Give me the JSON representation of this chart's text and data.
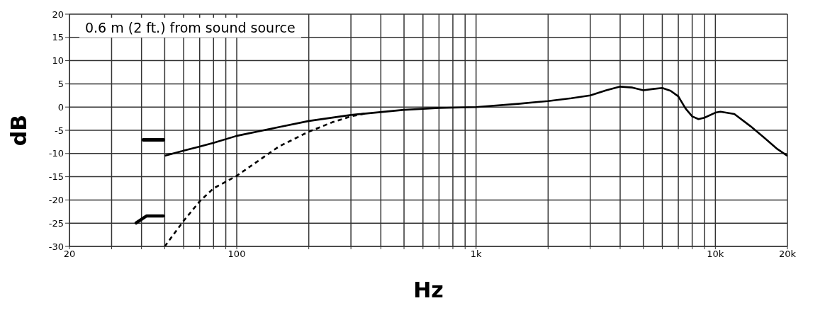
{
  "chart_data": {
    "type": "line",
    "xlabel": "Hz",
    "ylabel": "dB",
    "log": "x",
    "xlim": [
      20,
      20000
    ],
    "ylim": [
      -30,
      20
    ],
    "xticks": [
      {
        "value": 20,
        "label": "20"
      },
      {
        "value": 30,
        "label": null
      },
      {
        "value": 40,
        "label": null
      },
      {
        "value": 50,
        "label": null
      },
      {
        "value": 60,
        "label": null
      },
      {
        "value": 70,
        "label": null
      },
      {
        "value": 80,
        "label": null
      },
      {
        "value": 90,
        "label": null
      },
      {
        "value": 100,
        "label": "100"
      },
      {
        "value": 200,
        "label": null
      },
      {
        "value": 300,
        "label": null
      },
      {
        "value": 400,
        "label": null
      },
      {
        "value": 500,
        "label": null
      },
      {
        "value": 600,
        "label": null
      },
      {
        "value": 700,
        "label": null
      },
      {
        "value": 800,
        "label": null
      },
      {
        "value": 900,
        "label": null
      },
      {
        "value": 1000,
        "label": "1k"
      },
      {
        "value": 2000,
        "label": null
      },
      {
        "value": 3000,
        "label": null
      },
      {
        "value": 4000,
        "label": null
      },
      {
        "value": 5000,
        "label": null
      },
      {
        "value": 6000,
        "label": null
      },
      {
        "value": 7000,
        "label": null
      },
      {
        "value": 8000,
        "label": null
      },
      {
        "value": 9000,
        "label": null
      },
      {
        "value": 10000,
        "label": "10k"
      },
      {
        "value": 20000,
        "label": "20k"
      }
    ],
    "yticks": [
      -30,
      -25,
      -20,
      -15,
      -10,
      -5,
      0,
      5,
      10,
      15,
      20
    ],
    "grid": true,
    "legend": false,
    "marker": "none",
    "annotations": [
      "0.6 m (2 ft.) from sound source"
    ],
    "series": [
      {
        "color": "#000000",
        "line_style": "solid",
        "x": [
          50,
          60,
          70,
          80,
          100,
          150,
          200,
          300,
          500,
          700,
          1000,
          1500,
          2000,
          2500,
          3000,
          3500,
          4000,
          4500,
          5000,
          5500,
          6000,
          6500,
          7000,
          7500,
          8000,
          8500,
          9000,
          10000,
          10500,
          12000,
          14000,
          16000,
          18000,
          20000
        ],
        "values": [
          -10.5,
          -9.4,
          -8.5,
          -7.7,
          -6.2,
          -4.3,
          -3.0,
          -1.7,
          -0.6,
          -0.2,
          0,
          0.7,
          1.3,
          1.9,
          2.5,
          3.6,
          4.4,
          4.2,
          3.6,
          3.9,
          4.1,
          3.5,
          2.3,
          -0.3,
          -2.0,
          -2.6,
          -2.3,
          -1.2,
          -1.0,
          -1.5,
          -4.1,
          -6.6,
          -8.9,
          -10.5
        ]
      },
      {
        "color": "#000000",
        "line_style": "dashed",
        "x": [
          50,
          60,
          70,
          80,
          100,
          150,
          200,
          250,
          300,
          350
        ],
        "values": [
          -30,
          -24.5,
          -20.3,
          -17.5,
          -14.8,
          -8.5,
          -5.3,
          -3.3,
          -2.0,
          -1.3
        ]
      }
    ]
  }
}
